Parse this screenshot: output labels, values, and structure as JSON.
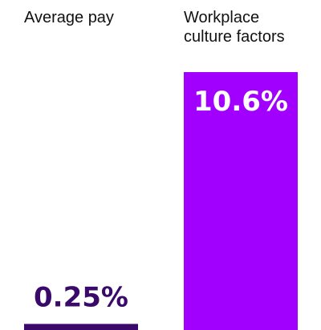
{
  "chart_data": {
    "type": "bar",
    "categories": [
      [
        "Average pay"
      ],
      [
        "Workplace",
        "culture factors"
      ]
    ],
    "values": [
      0.25,
      10.6
    ],
    "value_labels": [
      "0.25%",
      "10.6%"
    ],
    "colors": {
      "bars": [
        "#3a0a6b",
        "#a100ff"
      ],
      "value_label_on_bar": "#ffffff",
      "value_label_above_bar": "#3a0a6b"
    },
    "ylim": [
      0,
      10.6
    ]
  }
}
